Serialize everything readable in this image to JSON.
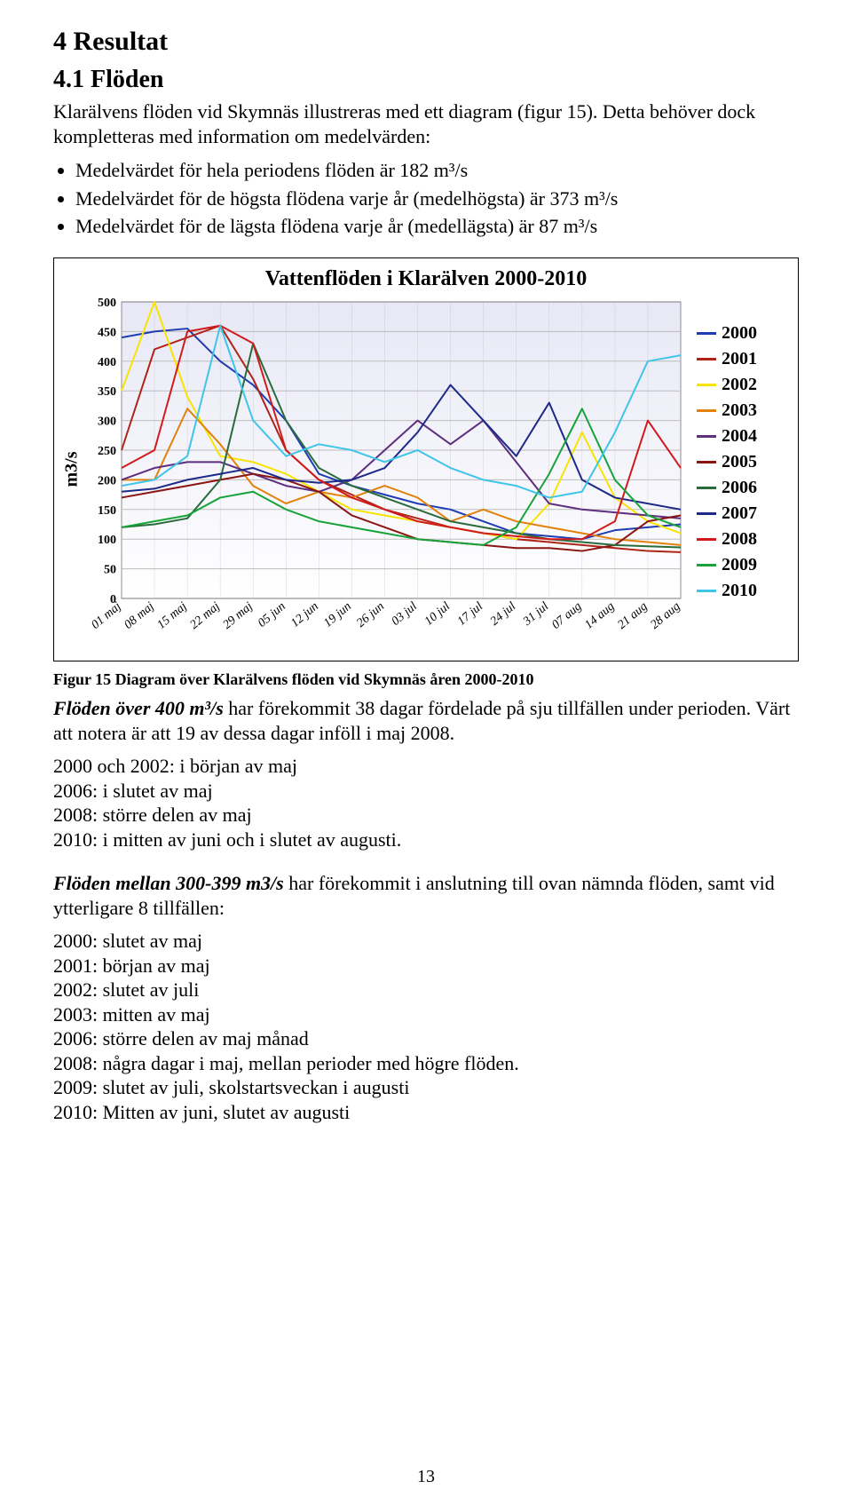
{
  "section_heading": "4 Resultat",
  "subsection_heading": "4.1 Flöden",
  "intro_para": "Klarälvens flöden vid Skymnäs illustreras med ett diagram (figur 15). Detta behöver dock kompletteras med information om medelvärden:",
  "bullets": [
    "Medelvärdet för hela periodens flöden är 182 m³/s",
    "Medelvärdet för de högsta flödena varje år (medelhögsta) är 373 m³/s",
    "Medelvärdet för de lägsta flödena varje år (medellägsta) är 87 m³/s"
  ],
  "chart": {
    "title": "Vattenflöden i Klarälven 2000-2010",
    "ylabel": "m3/s",
    "ylim": [
      0,
      500
    ],
    "ytick_step": 50,
    "yticks": [
      "0",
      "50",
      "100",
      "150",
      "200",
      "250",
      "300",
      "350",
      "400",
      "450",
      "500"
    ],
    "xlabels": [
      "01 maj",
      "08 maj",
      "15 maj",
      "22 maj",
      "29 maj",
      "05 jun",
      "12 jun",
      "19 jun",
      "26 jun",
      "03 jul",
      "10 jul",
      "17 jul",
      "24 jul",
      "31 jul",
      "07 aug",
      "14 aug",
      "21 aug",
      "28 aug"
    ],
    "background_top": "#e8e8f6",
    "background_bottom": "#ffffff",
    "grid_color": "#bdbdbd",
    "axis_color": "#7a7a7a",
    "label_fontsize": 14,
    "tick_fontsize": 14,
    "title_fontsize": 24,
    "line_width": 2,
    "series": [
      {
        "name": "2000",
        "color": "#1f3db3",
        "values": [
          440,
          450,
          455,
          400,
          360,
          300,
          210,
          190,
          175,
          160,
          150,
          130,
          110,
          105,
          100,
          115,
          120,
          125
        ]
      },
      {
        "name": "2001",
        "color": "#b02316",
        "values": [
          250,
          420,
          440,
          460,
          370,
          250,
          200,
          175,
          150,
          135,
          120,
          110,
          100,
          95,
          90,
          85,
          80,
          78
        ]
      },
      {
        "name": "2002",
        "color": "#f7e400",
        "values": [
          350,
          500,
          340,
          240,
          230,
          210,
          180,
          150,
          140,
          130,
          120,
          110,
          100,
          160,
          280,
          170,
          130,
          110
        ]
      },
      {
        "name": "2003",
        "color": "#e2820c",
        "values": [
          200,
          200,
          320,
          260,
          190,
          160,
          180,
          170,
          190,
          170,
          130,
          150,
          130,
          120,
          110,
          100,
          95,
          90
        ]
      },
      {
        "name": "2004",
        "color": "#5d2f7e",
        "values": [
          200,
          220,
          230,
          230,
          210,
          190,
          180,
          200,
          250,
          300,
          260,
          300,
          230,
          160,
          150,
          145,
          140,
          135
        ]
      },
      {
        "name": "2005",
        "color": "#8a1613",
        "values": [
          170,
          180,
          190,
          200,
          210,
          200,
          180,
          140,
          120,
          100,
          95,
          90,
          85,
          85,
          80,
          90,
          130,
          140
        ]
      },
      {
        "name": "2006",
        "color": "#2a6b3c",
        "values": [
          120,
          125,
          135,
          200,
          430,
          300,
          220,
          190,
          170,
          150,
          130,
          120,
          110,
          100,
          95,
          90,
          88,
          86
        ]
      },
      {
        "name": "2007",
        "color": "#1d2a8a",
        "values": [
          180,
          185,
          200,
          210,
          220,
          200,
          195,
          200,
          220,
          280,
          360,
          300,
          240,
          330,
          200,
          170,
          160,
          150
        ]
      },
      {
        "name": "2008",
        "color": "#d11b1b",
        "values": [
          220,
          250,
          450,
          460,
          430,
          250,
          200,
          170,
          150,
          130,
          120,
          110,
          105,
          100,
          100,
          130,
          300,
          220
        ]
      },
      {
        "name": "2009",
        "color": "#18a33a",
        "values": [
          120,
          130,
          140,
          170,
          180,
          150,
          130,
          120,
          110,
          100,
          95,
          90,
          120,
          210,
          320,
          200,
          140,
          120
        ]
      },
      {
        "name": "2010",
        "color": "#3fc5e8",
        "values": [
          190,
          200,
          240,
          460,
          300,
          240,
          260,
          250,
          230,
          250,
          220,
          200,
          190,
          170,
          180,
          280,
          400,
          410
        ]
      }
    ]
  },
  "caption": "Figur 15 Diagram över Klarälvens flöden vid Skymnäs åren 2000-2010",
  "para2_lead": "Flöden över 400 m³/s",
  "para2_rest": " har förekommit 38 dagar fördelade på sju tillfällen under perioden. Värt att notera är att 19 av dessa dagar inföll i maj 2008.",
  "para2_lines": [
    "2000 och 2002: i början av maj",
    "2006: i slutet av maj",
    "2008: större delen av maj",
    "2010: i mitten av juni och i slutet av augusti."
  ],
  "para3_lead": "Flöden mellan 300-399 m3/s",
  "para3_rest": " har förekommit i anslutning till ovan nämnda flöden, samt vid ytterligare 8 tillfällen:",
  "para3_lines": [
    "2000: slutet av maj",
    "2001: början av maj",
    "2002: slutet av juli",
    "2003: mitten av maj",
    "2006: större delen av maj månad",
    "2008: några dagar i maj, mellan perioder med högre flöden.",
    "2009: slutet av juli, skolstartsveckan i augusti",
    "2010: Mitten av juni, slutet av augusti"
  ],
  "page_number": "13"
}
